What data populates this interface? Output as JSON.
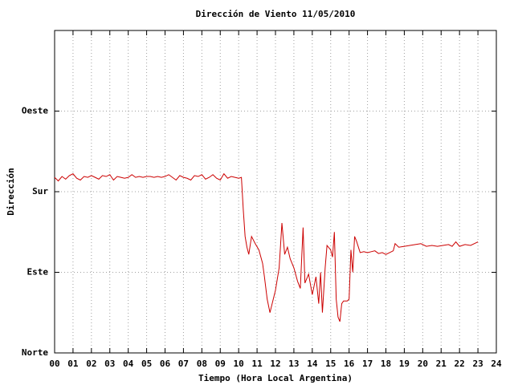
{
  "chart_data": {
    "type": "line",
    "title": "Dirección de Viento 11/05/2010",
    "x_label": "Tiempo (Hora Local Argentina)",
    "y_label": "Dirección",
    "color": "#cc0000",
    "grid": true,
    "xlim": [
      0,
      24
    ],
    "xticks": [
      {
        "value": 0,
        "label": "00"
      },
      {
        "value": 1,
        "label": "01"
      },
      {
        "value": 2,
        "label": "02"
      },
      {
        "value": 3,
        "label": "03"
      },
      {
        "value": 4,
        "label": "04"
      },
      {
        "value": 5,
        "label": "05"
      },
      {
        "value": 6,
        "label": "06"
      },
      {
        "value": 7,
        "label": "07"
      },
      {
        "value": 8,
        "label": "08"
      },
      {
        "value": 9,
        "label": "09"
      },
      10,
      11,
      12,
      13,
      14,
      15,
      16,
      17,
      18,
      19,
      20,
      21,
      22,
      23,
      24
    ],
    "ylim": [
      0,
      360
    ],
    "yticks": [
      {
        "value": 0,
        "label": "Norte"
      },
      {
        "value": 90,
        "label": "Este"
      },
      {
        "value": 180,
        "label": "Sur"
      },
      {
        "value": 270,
        "label": "Oeste"
      }
    ],
    "x": [
      0.0,
      0.2,
      0.4,
      0.6,
      0.8,
      1.0,
      1.2,
      1.4,
      1.6,
      1.8,
      2.0,
      2.2,
      2.4,
      2.6,
      2.8,
      3.0,
      3.2,
      3.4,
      3.6,
      3.8,
      4.0,
      4.2,
      4.4,
      4.6,
      4.8,
      5.0,
      5.2,
      5.4,
      5.6,
      5.8,
      6.0,
      6.2,
      6.4,
      6.6,
      6.8,
      7.0,
      7.2,
      7.4,
      7.6,
      7.8,
      8.0,
      8.2,
      8.4,
      8.6,
      8.8,
      9.0,
      9.2,
      9.4,
      9.6,
      9.8,
      10.0,
      10.15,
      10.25,
      10.35,
      10.45,
      10.55,
      10.7,
      10.9,
      11.1,
      11.3,
      11.4,
      11.55,
      11.7,
      12.0,
      12.2,
      12.35,
      12.5,
      12.65,
      12.8,
      13.0,
      13.2,
      13.35,
      13.5,
      13.6,
      13.8,
      14.0,
      14.2,
      14.35,
      14.45,
      14.55,
      14.7,
      14.8,
      15.0,
      15.1,
      15.2,
      15.3,
      15.4,
      15.5,
      15.6,
      15.7,
      15.9,
      16.0,
      16.1,
      16.2,
      16.3,
      16.4,
      16.6,
      16.8,
      17.0,
      17.2,
      17.4,
      17.6,
      17.8,
      18.0,
      18.2,
      18.4,
      18.5,
      18.7,
      19.0,
      19.3,
      19.6,
      19.9,
      20.2,
      20.5,
      20.8,
      21.1,
      21.4,
      21.6,
      21.8,
      22.0,
      22.3,
      22.6,
      22.9,
      23.0
    ],
    "values": [
      196,
      192,
      197,
      194,
      198,
      200,
      195,
      193,
      197,
      196,
      198,
      196,
      194,
      198,
      197,
      199,
      193,
      197,
      196,
      195,
      196,
      199,
      196,
      197,
      196,
      197,
      197,
      196,
      197,
      196,
      197,
      199,
      196,
      193,
      198,
      196,
      195,
      193,
      198,
      197,
      199,
      194,
      196,
      199,
      195,
      193,
      200,
      195,
      197,
      196,
      195,
      196,
      160,
      130,
      118,
      110,
      130,
      122,
      115,
      100,
      85,
      60,
      45,
      70,
      95,
      145,
      110,
      118,
      105,
      95,
      80,
      72,
      140,
      78,
      88,
      65,
      85,
      55,
      90,
      45,
      95,
      120,
      115,
      107,
      135,
      60,
      40,
      35,
      55,
      58,
      58,
      60,
      115,
      90,
      130,
      125,
      112,
      113,
      112,
      113,
      114,
      111,
      112,
      110,
      112,
      114,
      122,
      118,
      119,
      120,
      121,
      122,
      119,
      120,
      119,
      120,
      121,
      119,
      124,
      119,
      121,
      120,
      123,
      124
    ]
  }
}
